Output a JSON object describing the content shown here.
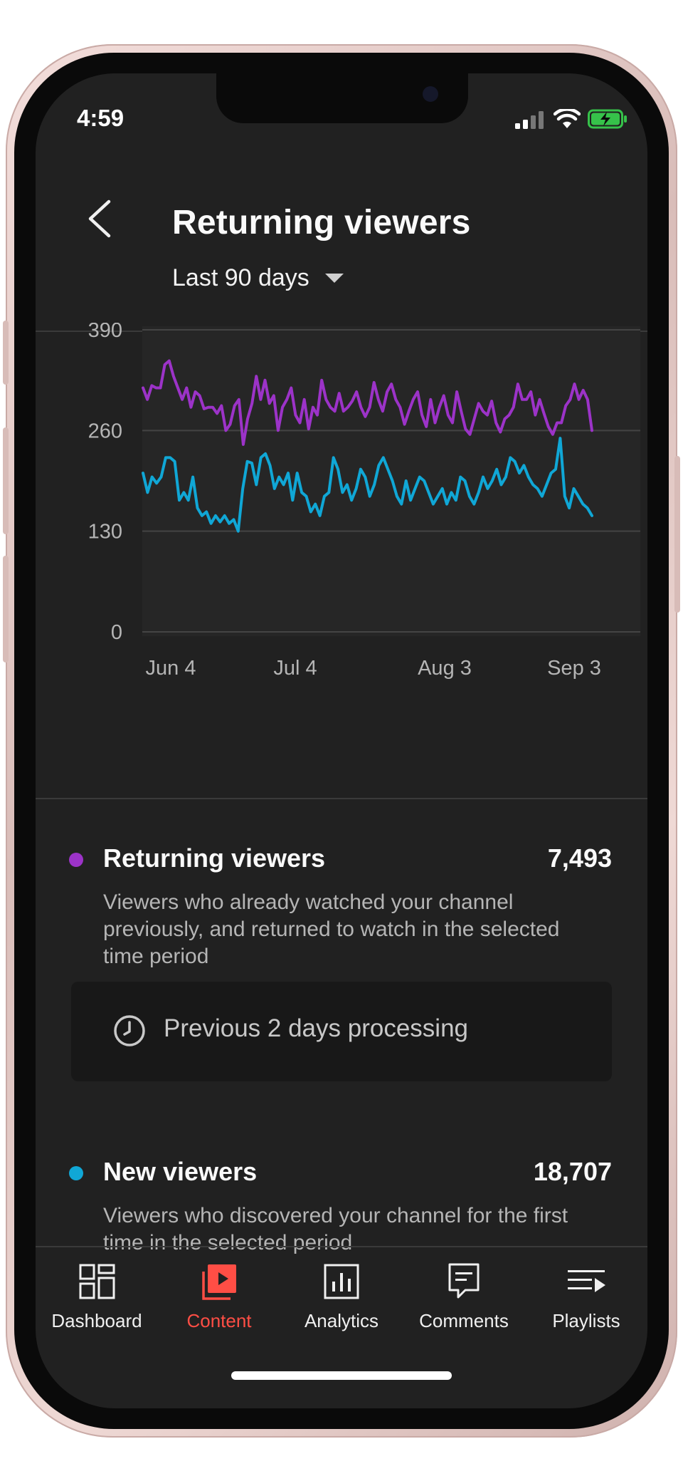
{
  "status_bar": {
    "time": "4:59"
  },
  "header": {
    "title": "Returning viewers"
  },
  "date_range": {
    "label": "Last 90 days"
  },
  "chart_data": {
    "type": "line",
    "y_ticks": [
      "390",
      "260",
      "130",
      "0"
    ],
    "x_ticks": [
      "Jun 4",
      "Jul 4",
      "Aug 3",
      "Sep 3"
    ],
    "ylim": [
      0,
      390
    ],
    "grid": true,
    "series": [
      {
        "color": "#9C33C8",
        "values": [
          315,
          300,
          318,
          315,
          315,
          345,
          350,
          330,
          315,
          300,
          315,
          290,
          310,
          305,
          288,
          290,
          290,
          282,
          292,
          260,
          268,
          292,
          300,
          242,
          275,
          295,
          330,
          300,
          325,
          295,
          305,
          260,
          290,
          300,
          315,
          280,
          270,
          300,
          262,
          290,
          280,
          325,
          300,
          290,
          285,
          308,
          285,
          290,
          298,
          310,
          290,
          278,
          290,
          322,
          300,
          285,
          310,
          320,
          300,
          290,
          268,
          285,
          300,
          310,
          280,
          265,
          300,
          270,
          290,
          305,
          280,
          270,
          310,
          285,
          262,
          255,
          275,
          295,
          285,
          280,
          298,
          270,
          258,
          275,
          280,
          290,
          320,
          300,
          300,
          310,
          280,
          300,
          282,
          265,
          255,
          270,
          270,
          292,
          300,
          320,
          300,
          312,
          300,
          260
        ]
      },
      {
        "color": "#10A7D6",
        "values": [
          205,
          180,
          200,
          192,
          200,
          225,
          225,
          220,
          170,
          180,
          170,
          200,
          160,
          150,
          155,
          140,
          150,
          142,
          150,
          140,
          145,
          130,
          185,
          220,
          218,
          190,
          225,
          230,
          215,
          185,
          200,
          190,
          205,
          170,
          205,
          180,
          175,
          155,
          165,
          150,
          175,
          180,
          225,
          210,
          180,
          190,
          170,
          185,
          210,
          200,
          175,
          190,
          215,
          225,
          210,
          195,
          175,
          165,
          195,
          170,
          185,
          200,
          195,
          180,
          165,
          175,
          185,
          165,
          180,
          170,
          200,
          195,
          175,
          165,
          180,
          200,
          185,
          195,
          210,
          190,
          200,
          225,
          220,
          205,
          215,
          200,
          190,
          185,
          175,
          190,
          205,
          210,
          250,
          175,
          160,
          185,
          175,
          165,
          160,
          150
        ]
      }
    ]
  },
  "metrics": [
    {
      "color": "#9C33C8",
      "name": "Returning viewers",
      "value": "7,493",
      "description": "Viewers who already watched your channel previously, and returned to watch in the selected time period"
    },
    {
      "color": "#10A7D6",
      "name": "New viewers",
      "value": "18,707",
      "description": "Viewers who discovered your channel for the first time in the selected period"
    }
  ],
  "processing_notice": {
    "text": "Previous 2 days processing",
    "icon": "clock-icon"
  },
  "tabs": [
    {
      "label": "Dashboard",
      "icon": "dashboard-icon"
    },
    {
      "label": "Content",
      "icon": "content-icon",
      "active": true
    },
    {
      "label": "Analytics",
      "icon": "analytics-icon"
    },
    {
      "label": "Comments",
      "icon": "comments-icon"
    },
    {
      "label": "Playlists",
      "icon": "playlists-icon"
    }
  ]
}
